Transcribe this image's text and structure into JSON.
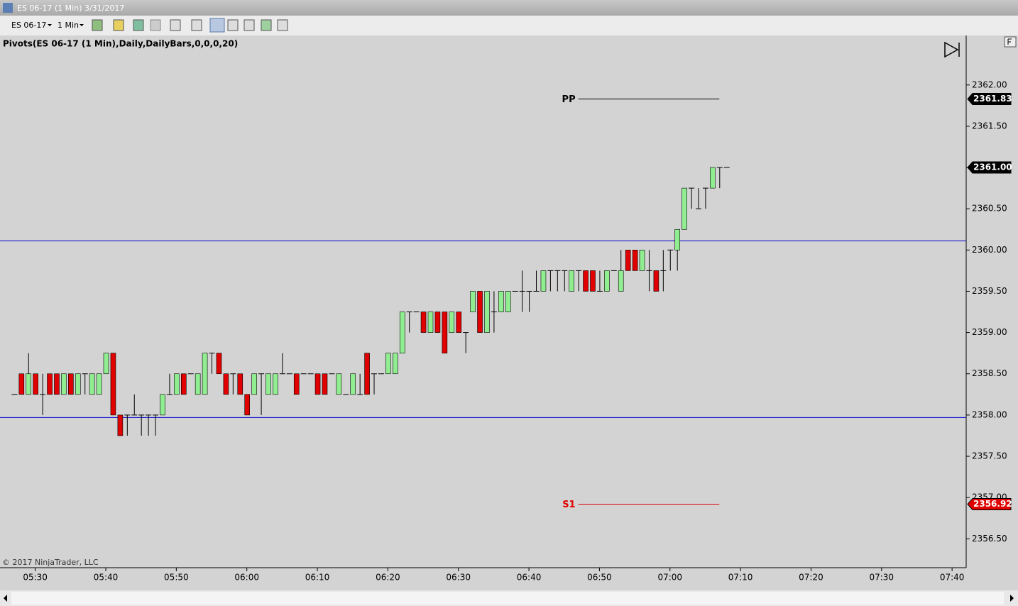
{
  "window": {
    "title": "ES 06-17 (1 Min)  3/31/2017",
    "instrument": "ES 06-17",
    "interval": "1 Min"
  },
  "chart_data": {
    "type": "candlestick",
    "indicator_label": "Pivots(ES 06-17 (1 Min),Daily,DailyBars,0,0,0,20)",
    "copyright": "© 2017 NinjaTrader, LLC",
    "up_color": "#90ee90",
    "down_color": "#e00000",
    "x": [
      "05:27",
      "05:28",
      "05:29",
      "05:30",
      "05:31",
      "05:32",
      "05:33",
      "05:34",
      "05:35",
      "05:36",
      "05:37",
      "05:38",
      "05:39",
      "05:40",
      "05:41",
      "05:42",
      "05:43",
      "05:44",
      "05:45",
      "05:46",
      "05:47",
      "05:48",
      "05:49",
      "05:50",
      "05:51",
      "05:52",
      "05:53",
      "05:54",
      "05:55",
      "05:56",
      "05:57",
      "05:58",
      "05:59",
      "06:00",
      "06:01",
      "06:02",
      "06:03",
      "06:04",
      "06:05",
      "06:06",
      "06:07",
      "06:08",
      "06:09",
      "06:10",
      "06:11",
      "06:12",
      "06:13",
      "06:14",
      "06:15",
      "06:16",
      "06:17",
      "06:18",
      "06:19",
      "06:20",
      "06:21",
      "06:22",
      "06:23",
      "06:24",
      "06:25",
      "06:26",
      "06:27",
      "06:28",
      "06:29",
      "06:30",
      "06:31",
      "06:32",
      "06:33",
      "06:34",
      "06:35",
      "06:36",
      "06:37",
      "06:38",
      "06:39",
      "06:40",
      "06:41",
      "06:42",
      "06:43",
      "06:44",
      "06:45",
      "06:46",
      "06:47",
      "06:48",
      "06:49",
      "06:50",
      "06:51",
      "06:52",
      "06:53",
      "06:54",
      "06:55",
      "06:56",
      "06:57",
      "06:58",
      "06:59",
      "07:00",
      "07:01",
      "07:02",
      "07:03",
      "07:04",
      "07:05",
      "07:06",
      "07:07",
      "07:08"
    ],
    "values": [
      [
        2358.25,
        2358.25,
        2358.25,
        2358.25
      ],
      [
        2358.5,
        2358.5,
        2358.25,
        2358.25
      ],
      [
        2358.25,
        2358.75,
        2358.25,
        2358.5
      ],
      [
        2358.5,
        2358.5,
        2358.25,
        2358.25
      ],
      [
        2358.25,
        2358.5,
        2358,
        2358.25
      ],
      [
        2358.5,
        2358.5,
        2358.25,
        2358.25
      ],
      [
        2358.5,
        2358.5,
        2358.25,
        2358.25
      ],
      [
        2358.25,
        2358.5,
        2358.25,
        2358.5
      ],
      [
        2358.5,
        2358.5,
        2358.25,
        2358.25
      ],
      [
        2358.25,
        2358.5,
        2358.25,
        2358.5
      ],
      [
        2358.5,
        2358.5,
        2358.25,
        2358.5
      ],
      [
        2358.25,
        2358.5,
        2358.25,
        2358.5
      ],
      [
        2358.25,
        2358.5,
        2358.25,
        2358.5
      ],
      [
        2358.5,
        2358.75,
        2358.5,
        2358.75
      ],
      [
        2358.75,
        2358.75,
        2358,
        2358
      ],
      [
        2358,
        2358,
        2357.75,
        2357.75
      ],
      [
        2358,
        2358,
        2357.75,
        2358
      ],
      [
        2358,
        2358.25,
        2358,
        2358
      ],
      [
        2358,
        2358,
        2357.75,
        2358
      ],
      [
        2358,
        2358,
        2357.75,
        2358
      ],
      [
        2358,
        2358,
        2357.75,
        2358
      ],
      [
        2358,
        2358.25,
        2358,
        2358.25
      ],
      [
        2358.25,
        2358.5,
        2358.25,
        2358.25
      ],
      [
        2358.25,
        2358.5,
        2358.25,
        2358.5
      ],
      [
        2358.5,
        2358.5,
        2358.25,
        2358.25
      ],
      [
        2358.5,
        2358.5,
        2358.5,
        2358.5
      ],
      [
        2358.25,
        2358.5,
        2358.25,
        2358.5
      ],
      [
        2358.25,
        2358.75,
        2358.25,
        2358.75
      ],
      [
        2358.75,
        2358.75,
        2358.5,
        2358.75
      ],
      [
        2358.75,
        2358.75,
        2358.5,
        2358.5
      ],
      [
        2358.5,
        2358.5,
        2358.25,
        2358.25
      ],
      [
        2358.5,
        2358.5,
        2358.25,
        2358.5
      ],
      [
        2358.5,
        2358.5,
        2358.25,
        2358.25
      ],
      [
        2358.25,
        2358.25,
        2358,
        2358
      ],
      [
        2358.25,
        2358.5,
        2358.25,
        2358.5
      ],
      [
        2358.5,
        2358.5,
        2358,
        2358.5
      ],
      [
        2358.25,
        2358.5,
        2358.25,
        2358.5
      ],
      [
        2358.25,
        2358.5,
        2358.25,
        2358.5
      ],
      [
        2358.5,
        2358.75,
        2358.5,
        2358.5
      ],
      [
        2358.5,
        2358.5,
        2358.5,
        2358.5
      ],
      [
        2358.5,
        2358.5,
        2358.25,
        2358.25
      ],
      [
        2358.5,
        2358.5,
        2358.5,
        2358.5
      ],
      [
        2358.5,
        2358.5,
        2358.5,
        2358.5
      ],
      [
        2358.5,
        2358.5,
        2358.25,
        2358.25
      ],
      [
        2358.5,
        2358.5,
        2358.25,
        2358.25
      ],
      [
        2358.5,
        2358.5,
        2358.5,
        2358.5
      ],
      [
        2358.25,
        2358.5,
        2358.25,
        2358.5
      ],
      [
        2358.25,
        2358.25,
        2358.25,
        2358.25
      ],
      [
        2358.25,
        2358.5,
        2358.25,
        2358.5
      ],
      [
        2358.25,
        2358.5,
        2358.25,
        2358.25
      ],
      [
        2358.75,
        2358.75,
        2358.25,
        2358.25
      ],
      [
        2358.5,
        2358.5,
        2358.25,
        2358.5
      ],
      [
        2358.5,
        2358.5,
        2358.5,
        2358.5
      ],
      [
        2358.5,
        2358.75,
        2358.5,
        2358.75
      ],
      [
        2358.5,
        2358.75,
        2358.5,
        2358.75
      ],
      [
        2358.75,
        2359.25,
        2358.75,
        2359.25
      ],
      [
        2359.25,
        2359.25,
        2359,
        2359.25
      ],
      [
        2359.25,
        2359.25,
        2359.25,
        2359.25
      ],
      [
        2359.25,
        2359.25,
        2359,
        2359
      ],
      [
        2359,
        2359.25,
        2359,
        2359.25
      ],
      [
        2359.25,
        2359.25,
        2359,
        2359
      ],
      [
        2359.25,
        2359.25,
        2358.75,
        2358.75
      ],
      [
        2359,
        2359.25,
        2359,
        2359.25
      ],
      [
        2359.25,
        2359.25,
        2359,
        2359
      ],
      [
        2359,
        2359,
        2358.75,
        2359
      ],
      [
        2359.25,
        2359.5,
        2359.25,
        2359.5
      ],
      [
        2359.5,
        2359.5,
        2359,
        2359
      ],
      [
        2359,
        2359.5,
        2359,
        2359.5
      ],
      [
        2359.25,
        2359.5,
        2359,
        2359.25
      ],
      [
        2359.25,
        2359.5,
        2359.25,
        2359.5
      ],
      [
        2359.25,
        2359.5,
        2359.25,
        2359.5
      ],
      [
        2359.5,
        2359.5,
        2359.5,
        2359.5
      ],
      [
        2359.5,
        2359.75,
        2359.25,
        2359.5
      ],
      [
        2359.5,
        2359.5,
        2359.25,
        2359.5
      ],
      [
        2359.5,
        2359.75,
        2359.5,
        2359.5
      ],
      [
        2359.5,
        2359.75,
        2359.5,
        2359.75
      ],
      [
        2359.75,
        2359.75,
        2359.5,
        2359.75
      ],
      [
        2359.75,
        2359.75,
        2359.5,
        2359.75
      ],
      [
        2359.75,
        2359.75,
        2359.5,
        2359.75
      ],
      [
        2359.5,
        2359.75,
        2359.5,
        2359.75
      ],
      [
        2359.75,
        2359.75,
        2359.5,
        2359.75
      ],
      [
        2359.75,
        2359.75,
        2359.5,
        2359.5
      ],
      [
        2359.75,
        2359.75,
        2359.5,
        2359.5
      ],
      [
        2359.5,
        2359.75,
        2359.5,
        2359.5
      ],
      [
        2359.5,
        2359.75,
        2359.5,
        2359.75
      ],
      [
        2359.75,
        2359.75,
        2359.75,
        2359.75
      ],
      [
        2359.5,
        2360,
        2359.5,
        2359.75
      ],
      [
        2360,
        2360,
        2359.75,
        2359.75
      ],
      [
        2360,
        2360,
        2359.75,
        2359.75
      ],
      [
        2359.75,
        2360,
        2359.75,
        2360
      ],
      [
        2359.75,
        2360,
        2359.5,
        2359.75
      ],
      [
        2359.75,
        2359.75,
        2359.5,
        2359.5
      ],
      [
        2359.75,
        2360,
        2359.5,
        2359.75
      ],
      [
        2360,
        2360,
        2359.75,
        2360
      ],
      [
        2360,
        2360.25,
        2359.75,
        2360.25
      ],
      [
        2360.25,
        2360.75,
        2360.25,
        2360.75
      ],
      [
        2360.75,
        2360.75,
        2360.5,
        2360.75
      ],
      [
        2360.5,
        2360.75,
        2360.5,
        2360.5
      ],
      [
        2360.75,
        2360.75,
        2360.5,
        2360.75
      ],
      [
        2360.75,
        2361,
        2360.75,
        2361
      ],
      [
        2361,
        2361,
        2360.75,
        2361
      ],
      [
        2361,
        2361,
        2361,
        2361
      ]
    ],
    "xlim": [
      "05:25",
      "07:42"
    ],
    "xticks": [
      "05:30",
      "05:40",
      "05:50",
      "06:00",
      "06:10",
      "06:20",
      "06:30",
      "06:40",
      "06:50",
      "07:00",
      "07:10",
      "07:20",
      "07:30",
      "07:40"
    ],
    "ylim": [
      2356.15,
      2362.6
    ],
    "yticks": [
      {
        "value": 2356.5,
        "label": "2356.50"
      },
      {
        "value": 2357,
        "label": "2357.00"
      },
      {
        "value": 2357.5,
        "label": "2357.50"
      },
      {
        "value": 2358,
        "label": "2358.00"
      },
      {
        "value": 2358.5,
        "label": "2358.50"
      },
      {
        "value": 2359,
        "label": "2359.00"
      },
      {
        "value": 2359.5,
        "label": "2359.50"
      },
      {
        "value": 2360,
        "label": "2360.00"
      },
      {
        "value": 2360.5,
        "label": "2360.50"
      },
      {
        "value": 2361,
        "label": "2361.00"
      },
      {
        "value": 2361.5,
        "label": "2361.50"
      },
      {
        "value": 2362,
        "label": "2362.00"
      }
    ],
    "hlines": [
      {
        "value": 2360.11,
        "color": "#0000cc"
      },
      {
        "value": 2357.97,
        "color": "#0000cc"
      }
    ],
    "pivots": [
      {
        "label": "PP",
        "value": 2361.83,
        "color": "#000000",
        "start": "06:47",
        "end": "07:07"
      },
      {
        "label": "S1",
        "value": 2356.92,
        "color": "#e00000",
        "start": "06:47",
        "end": "07:07"
      }
    ],
    "last_price": {
      "value": 2361,
      "label": "2361.00"
    }
  }
}
